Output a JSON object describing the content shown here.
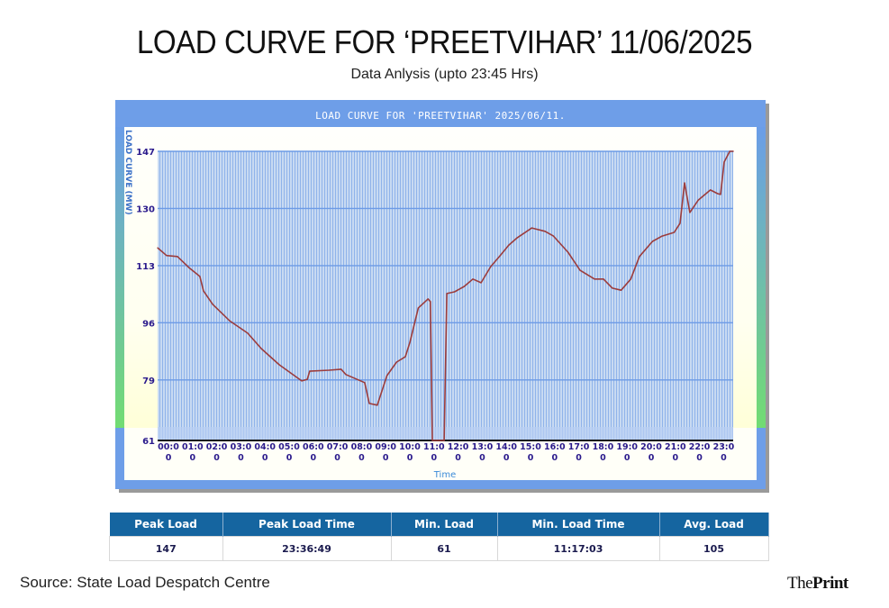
{
  "header": {
    "title": "LOAD CURVE FOR ‘PREETVIHAR’ 11/06/2025",
    "subtitle": "Data Anlysis (upto 23:45 Hrs)"
  },
  "chart_data": {
    "type": "line",
    "title": "LOAD CURVE FOR 'PREETVIHAR' 2025/06/11.",
    "xlabel": "Time",
    "ylabel": "LOAD CURVE (MW)",
    "xlim": [
      0,
      24
    ],
    "ylim": [
      61,
      147
    ],
    "grid": true,
    "legend": "none",
    "y_ticks": [
      61,
      79,
      96,
      113,
      130,
      147
    ],
    "x_tick_labels": [
      "00:00",
      "01:00",
      "02:00",
      "03:00",
      "04:00",
      "05:00",
      "06:00",
      "07:00",
      "08:00",
      "09:00",
      "10:00",
      "11:00",
      "12:00",
      "13:00",
      "14:00",
      "15:00",
      "16:00",
      "17:00",
      "18:00",
      "19:00",
      "20:00",
      "21:00",
      "22:00",
      "23:00"
    ],
    "series": [
      {
        "name": "Load (MW)",
        "color": "#9c3c3c",
        "x": [
          0,
          0.37,
          0.82,
          1.3,
          1.75,
          1.9,
          2.28,
          2.98,
          3.73,
          4.3,
          5.04,
          5.97,
          6.2,
          6.3,
          7.1,
          7.6,
          7.8,
          8.58,
          8.77,
          9.1,
          9.5,
          9.9,
          10.26,
          10.45,
          10.8,
          11.2,
          11.3,
          11.38,
          11.87,
          11.98,
          12.3,
          12.7,
          13.06,
          13.4,
          13.8,
          14.18,
          14.55,
          14.9,
          15.5,
          16.05,
          16.4,
          17.0,
          17.5,
          18.1,
          18.47,
          18.84,
          19.2,
          19.6,
          19.96,
          20.5,
          20.9,
          21.4,
          21.64,
          21.83,
          22.05,
          22.4,
          22.9,
          23.2,
          23.32,
          23.47,
          23.7,
          23.85
        ],
        "y": [
          118.3,
          116,
          115.7,
          112.4,
          109.8,
          105.5,
          101.5,
          96.6,
          92.9,
          88.3,
          83.5,
          78.7,
          79.2,
          81.6,
          81.9,
          82.2,
          80.6,
          78.2,
          72,
          71.5,
          80.3,
          84.3,
          85.9,
          90.2,
          100.4,
          103.1,
          102.3,
          61,
          61,
          104.7,
          105.2,
          106.8,
          109,
          107.9,
          112.7,
          115.9,
          119.1,
          121.3,
          124.2,
          123.2,
          121.8,
          117,
          111.6,
          109,
          109,
          106.3,
          105.7,
          109,
          115.7,
          120.2,
          121.8,
          122.9,
          125.6,
          137.6,
          128.8,
          132.5,
          135.5,
          134.4,
          134.2,
          143.8,
          147,
          147
        ]
      }
    ]
  },
  "stats_table": {
    "headers": [
      "Peak Load",
      "Peak Load Time",
      "Min. Load",
      "Min. Load Time",
      "Avg. Load"
    ],
    "values": [
      "147",
      "23:36:49",
      "61",
      "11:17:03",
      "105"
    ]
  },
  "footer": {
    "source": "Source: State Load Despatch Centre",
    "brand_the": "The",
    "brand_print": "Print"
  },
  "colors": {
    "frame": "#6e9ee8",
    "plot_bg": "#c3d7ef",
    "grid": "#6d9be6",
    "line": "#9c3c3c",
    "tick_label": "#2a1a8c",
    "table_header": "#1565a0"
  }
}
